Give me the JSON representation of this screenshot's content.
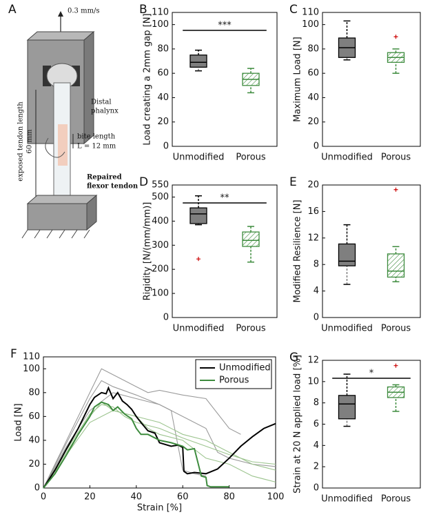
{
  "figure_a": {
    "panel": "A",
    "speed": "0.3 mm/s",
    "distal": [
      "Distal",
      "phalynx"
    ],
    "bite_length": "bite length",
    "bite_value": "L = 12 mm",
    "exposed": "exposed tendon length",
    "exposed_value": "60 mm",
    "repaired": [
      "Repaired",
      "flexor tendon"
    ]
  },
  "chart_data": [
    {
      "type": "box",
      "panel": "B",
      "ylabel": "Load creating a 2mm gap [N]",
      "categories": [
        "Unmodified",
        "Porous"
      ],
      "significance": "***",
      "boxes": [
        {
          "color": "#7f7f7f",
          "min": 62,
          "q1": 65,
          "median": 69,
          "q3": 75,
          "max": 79,
          "outliers": []
        },
        {
          "color": "#3d8b3d",
          "hatch": true,
          "min": 44,
          "q1": 50,
          "median": 55,
          "q3": 60,
          "max": 64,
          "outliers": []
        }
      ],
      "ylim": [
        0,
        110
      ],
      "yticks": [
        0,
        20,
        40,
        60,
        80,
        100,
        110
      ]
    },
    {
      "type": "box",
      "panel": "C",
      "ylabel": "Maximum Load [N]",
      "categories": [
        "Unmodified",
        "Porous"
      ],
      "boxes": [
        {
          "color": "#7f7f7f",
          "min": 71,
          "q1": 73,
          "median": 81,
          "q3": 89,
          "max": 103,
          "outliers": []
        },
        {
          "color": "#3d8b3d",
          "hatch": true,
          "min": 60,
          "q1": 69,
          "median": 73,
          "q3": 77,
          "max": 80,
          "outliers": [
            90
          ]
        }
      ],
      "ylim": [
        0,
        110
      ],
      "yticks": [
        0,
        20,
        40,
        60,
        80,
        100,
        110
      ]
    },
    {
      "type": "box",
      "panel": "D",
      "ylabel": "Rigidity [N/(mm/mm)]",
      "categories": [
        "Unmodified",
        "Porous"
      ],
      "significance": "**",
      "boxes": [
        {
          "color": "#7f7f7f",
          "min": 385,
          "q1": 390,
          "median": 430,
          "q3": 455,
          "max": 505,
          "outliers": [
            243
          ]
        },
        {
          "color": "#3d8b3d",
          "hatch": true,
          "min": 230,
          "q1": 295,
          "median": 320,
          "q3": 355,
          "max": 378,
          "outliers": []
        }
      ],
      "ylim": [
        0,
        550
      ],
      "yticks": [
        0,
        100,
        200,
        300,
        400,
        500,
        550
      ]
    },
    {
      "type": "box",
      "panel": "E",
      "ylabel": "Modified Resilience [N]",
      "categories": [
        "Unmodified",
        "Porous"
      ],
      "boxes": [
        {
          "color": "#7f7f7f",
          "min": 5,
          "q1": 7.8,
          "median": 8.5,
          "q3": 11.1,
          "max": 14,
          "outliers": []
        },
        {
          "color": "#3d8b3d",
          "hatch": true,
          "min": 5.4,
          "q1": 6.1,
          "median": 7,
          "q3": 9.6,
          "max": 10.7,
          "outliers": [
            19.3
          ]
        }
      ],
      "ylim": [
        0,
        20
      ],
      "yticks": [
        0,
        4,
        8,
        12,
        16,
        20
      ]
    },
    {
      "type": "line",
      "panel": "F",
      "xlabel": "Strain [%]",
      "ylabel": "Load [N]",
      "legend": "upper right",
      "series": [
        {
          "color": "#9a9a9a",
          "x": [
            0,
            10,
            20,
            25,
            30,
            35,
            40,
            45,
            50,
            60,
            70,
            80,
            85
          ],
          "values": [
            0,
            40,
            80,
            100,
            95,
            90,
            85,
            80,
            82,
            78,
            75,
            50,
            45
          ]
        },
        {
          "color": "#9a9a9a",
          "x": [
            0,
            10,
            20,
            30,
            40,
            50,
            60,
            70,
            75,
            80,
            90,
            100
          ],
          "values": [
            0,
            35,
            65,
            80,
            75,
            70,
            60,
            50,
            30,
            25,
            20,
            18
          ]
        },
        {
          "color": "#9a9a9a",
          "x": [
            0,
            10,
            20,
            25,
            30,
            40,
            50,
            55,
            60,
            65,
            70
          ],
          "values": [
            0,
            38,
            75,
            90,
            85,
            78,
            70,
            65,
            15,
            12,
            10
          ]
        },
        {
          "color": "#9cc48e",
          "x": [
            0,
            10,
            20,
            25,
            30,
            40,
            50,
            60,
            70,
            80,
            90,
            100
          ],
          "values": [
            0,
            30,
            60,
            72,
            65,
            60,
            55,
            45,
            40,
            30,
            20,
            15
          ]
        },
        {
          "color": "#9cc48e",
          "x": [
            0,
            10,
            20,
            30,
            40,
            45,
            50,
            60,
            70,
            80,
            90,
            100
          ],
          "values": [
            0,
            28,
            55,
            65,
            60,
            50,
            45,
            40,
            25,
            20,
            10,
            5
          ]
        },
        {
          "color": "#9cc48e",
          "x": [
            0,
            10,
            20,
            25,
            30,
            35,
            40,
            50,
            60,
            70,
            80,
            90,
            100
          ],
          "values": [
            0,
            32,
            62,
            70,
            68,
            60,
            55,
            50,
            42,
            35,
            28,
            22,
            20
          ]
        },
        {
          "name": "Unmodified",
          "color": "#000000",
          "x": [
            0,
            5,
            10,
            15,
            20,
            22,
            25,
            27,
            28,
            30,
            32,
            34,
            36,
            38,
            40,
            42,
            45,
            48,
            50,
            55,
            58,
            60,
            60.5,
            62,
            65,
            70,
            75,
            80,
            85,
            90,
            95,
            100
          ],
          "values": [
            0,
            15,
            33,
            50,
            70,
            76,
            80,
            79,
            84,
            75,
            80,
            73,
            70,
            66,
            60,
            55,
            48,
            46,
            38,
            35,
            36,
            34,
            14,
            12,
            13,
            12,
            16,
            25,
            35,
            43,
            50,
            54
          ]
        },
        {
          "name": "Porous",
          "color": "#3d8b3d",
          "x": [
            0,
            5,
            10,
            15,
            20,
            22,
            25,
            28,
            30,
            32,
            35,
            38,
            40,
            42,
            45,
            50,
            55,
            60,
            62,
            65,
            68,
            70,
            70.5,
            72,
            75,
            80
          ],
          "values": [
            0,
            12,
            28,
            45,
            60,
            68,
            72,
            70,
            65,
            68,
            62,
            58,
            50,
            45,
            45,
            40,
            38,
            35,
            32,
            33,
            10,
            9,
            2,
            1,
            1,
            1
          ]
        }
      ],
      "xlim": [
        0,
        100
      ],
      "xticks": [
        0,
        20,
        40,
        60,
        80,
        100
      ],
      "ylim": [
        0,
        110
      ],
      "yticks": [
        0,
        20,
        40,
        60,
        80,
        100,
        110
      ]
    },
    {
      "type": "box",
      "panel": "G",
      "ylabel": "Strain at 20 N applied load [%]",
      "categories": [
        "Unmodified",
        "Porous"
      ],
      "significance": "*",
      "boxes": [
        {
          "color": "#7f7f7f",
          "min": 5.8,
          "q1": 6.5,
          "median": 7.9,
          "q3": 8.7,
          "max": 10.7,
          "outliers": []
        },
        {
          "color": "#3d8b3d",
          "hatch": true,
          "min": 7.2,
          "q1": 8.5,
          "median": 9,
          "q3": 9.5,
          "max": 9.7,
          "outliers": [
            11.5
          ]
        }
      ],
      "ylim": [
        0,
        12
      ],
      "yticks": [
        0,
        2,
        4,
        6,
        8,
        10,
        12
      ]
    }
  ]
}
